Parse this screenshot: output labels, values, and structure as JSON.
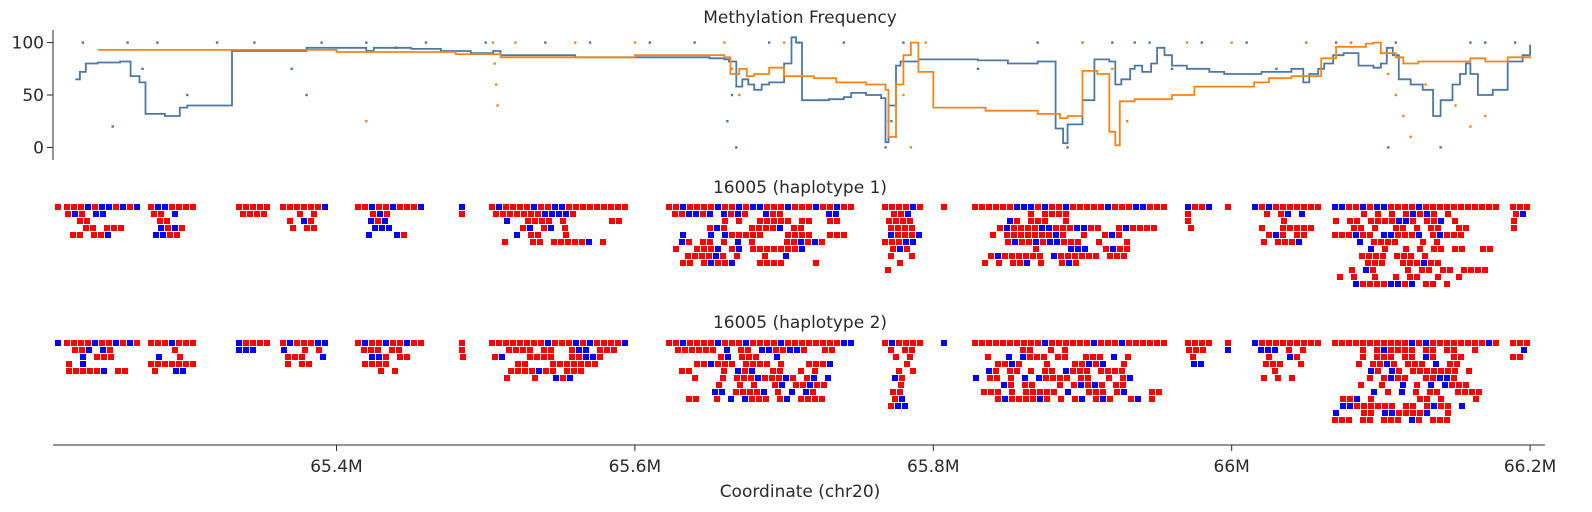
{
  "chart_data": [
    {
      "type": "line",
      "title": "Methylation Frequency",
      "xlabel": "Coordinate (chr20)",
      "ylabel": "",
      "xlim": [
        65210000,
        66210000
      ],
      "ylim": [
        -12,
        112
      ],
      "y_ticks": [
        0,
        50,
        100
      ],
      "x_ticks": [
        {
          "value": 65400000,
          "label": "65.4M"
        },
        {
          "value": 65600000,
          "label": "65.6M"
        },
        {
          "value": 65800000,
          "label": "65.8M"
        },
        {
          "value": 66000000,
          "label": "66M"
        },
        {
          "value": 66200000,
          "label": "66.2M"
        }
      ],
      "grid": false,
      "series": [
        {
          "color": "#4c78a8",
          "x": [
            65225000,
            65228000,
            65232000,
            65240000,
            65255000,
            65262000,
            65268000,
            65272000,
            65285000,
            65295000,
            65300000,
            65330000,
            65380000,
            65420000,
            65425000,
            65450000,
            65470000,
            65490000,
            65505000,
            65510000,
            65560000,
            65600000,
            65640000,
            65650000,
            65660000,
            65663000,
            65668000,
            65672000,
            65676000,
            65680000,
            65685000,
            65690000,
            65700000,
            65705000,
            65708000,
            65712000,
            65730000,
            65740000,
            65745000,
            65755000,
            65765000,
            65768000,
            65770000,
            65775000,
            65778000,
            65790000,
            65830000,
            65850000,
            65870000,
            65882000,
            65887000,
            65890000,
            65900000,
            65908000,
            65918000,
            65922000,
            65926000,
            65932000,
            65935000,
            65940000,
            65946000,
            65950000,
            65955000,
            65960000,
            65970000,
            65985000,
            65995000,
            66020000,
            66040000,
            66048000,
            66052000,
            66058000,
            66062000,
            66068000,
            66075000,
            66085000,
            66095000,
            66100000,
            66104000,
            66108000,
            66112000,
            66120000,
            66128000,
            66135000,
            66140000,
            66148000,
            66153000,
            66157000,
            66160000,
            66165000,
            66175000,
            66185000,
            66195000,
            66200000
          ],
          "y": [
            65,
            72,
            80,
            81,
            82,
            68,
            62,
            32,
            30,
            38,
            40,
            92,
            95,
            92,
            95,
            94,
            92,
            90,
            92,
            88,
            86,
            86,
            86,
            85,
            84,
            82,
            58,
            65,
            60,
            55,
            60,
            62,
            80,
            105,
            100,
            45,
            46,
            48,
            52,
            50,
            47,
            5,
            40,
            78,
            82,
            84,
            83,
            80,
            82,
            18,
            4,
            22,
            45,
            84,
            82,
            60,
            65,
            75,
            78,
            72,
            80,
            95,
            88,
            78,
            75,
            72,
            70,
            72,
            75,
            62,
            70,
            75,
            80,
            88,
            90,
            78,
            76,
            80,
            95,
            88,
            65,
            60,
            55,
            30,
            45,
            60,
            70,
            80,
            70,
            50,
            55,
            82,
            88,
            98
          ]
        },
        {
          "color": "#f58518",
          "x": [
            65240000,
            65300000,
            65400000,
            65480000,
            65510000,
            65600000,
            65650000,
            65660000,
            65664000,
            65670000,
            65675000,
            65680000,
            65690000,
            65700000,
            65720000,
            65735000,
            65755000,
            65768000,
            65770000,
            65775000,
            65780000,
            65785000,
            65790000,
            65800000,
            65835000,
            65870000,
            65880000,
            65885000,
            65890000,
            65900000,
            65910000,
            65918000,
            65922000,
            65925000,
            65935000,
            65960000,
            65975000,
            66015000,
            66025000,
            66040000,
            66060000,
            66070000,
            66090000,
            66095000,
            66100000,
            66110000,
            66115000,
            66125000,
            66145000,
            66160000,
            66170000,
            66185000,
            66200000
          ],
          "y": [
            93,
            93,
            91,
            89,
            86,
            88,
            88,
            86,
            70,
            75,
            68,
            70,
            76,
            68,
            66,
            62,
            60,
            55,
            10,
            60,
            88,
            100,
            72,
            38,
            35,
            32,
            32,
            28,
            30,
            73,
            70,
            15,
            2,
            44,
            46,
            50,
            58,
            62,
            66,
            68,
            85,
            96,
            99,
            100,
            90,
            86,
            80,
            82,
            82,
            85,
            82,
            86,
            88
          ]
        }
      ],
      "scatter_series": [
        {
          "color": "#4c78a8",
          "x": [
            65230000,
            65250000,
            65260000,
            65270000,
            65280000,
            65300000,
            65320000,
            65345000,
            65370000,
            65380000,
            65390000,
            65420000,
            65440000,
            65460000,
            65500000,
            65540000,
            65570000,
            65610000,
            65640000,
            65662000,
            65665000,
            65668000,
            65690000,
            65710000,
            65740000,
            65768000,
            65772000,
            65780000,
            65830000,
            65870000,
            65890000,
            65900000,
            65920000,
            65935000,
            65945000,
            65960000,
            65980000,
            66010000,
            66030000,
            66050000,
            66070000,
            66080000,
            66105000,
            66110000,
            66140000,
            66160000,
            66170000,
            66190000
          ],
          "y": [
            100,
            20,
            100,
            75,
            100,
            50,
            100,
            100,
            75,
            50,
            100,
            100,
            95,
            100,
            100,
            100,
            100,
            100,
            100,
            25,
            50,
            0,
            100,
            100,
            100,
            0,
            25,
            100,
            75,
            100,
            0,
            100,
            100,
            100,
            100,
            75,
            100,
            100,
            75,
            100,
            100,
            100,
            0,
            100,
            0,
            100,
            100,
            100
          ]
        },
        {
          "color": "#f58518",
          "x": [
            65420000,
            65505000,
            65506000,
            65507000,
            65508000,
            65520000,
            65560000,
            65600000,
            65660000,
            65665000,
            65670000,
            65700000,
            65770000,
            65775000,
            65780000,
            65785000,
            65795000,
            65900000,
            65920000,
            65930000,
            65970000,
            66000000,
            66050000,
            66080000,
            66100000,
            66105000,
            66110000,
            66115000,
            66120000,
            66130000,
            66150000,
            66160000,
            66170000
          ],
          "y": [
            25,
            100,
            80,
            60,
            40,
            100,
            100,
            100,
            100,
            75,
            50,
            100,
            25,
            10,
            50,
            0,
            100,
            100,
            75,
            25,
            100,
            100,
            100,
            100,
            90,
            70,
            50,
            30,
            10,
            60,
            40,
            20,
            30
          ]
        }
      ]
    },
    {
      "type": "heatmap",
      "title": "16005 (haplotype 1)",
      "legend": "none",
      "colors": {
        "methylated": "#ff0000",
        "unmethylated": "#0000ff"
      }
    },
    {
      "type": "heatmap",
      "title": "16005 (haplotype 2)",
      "legend": "none",
      "colors": {
        "methylated": "#ff0000",
        "unmethylated": "#0000ff"
      }
    }
  ]
}
